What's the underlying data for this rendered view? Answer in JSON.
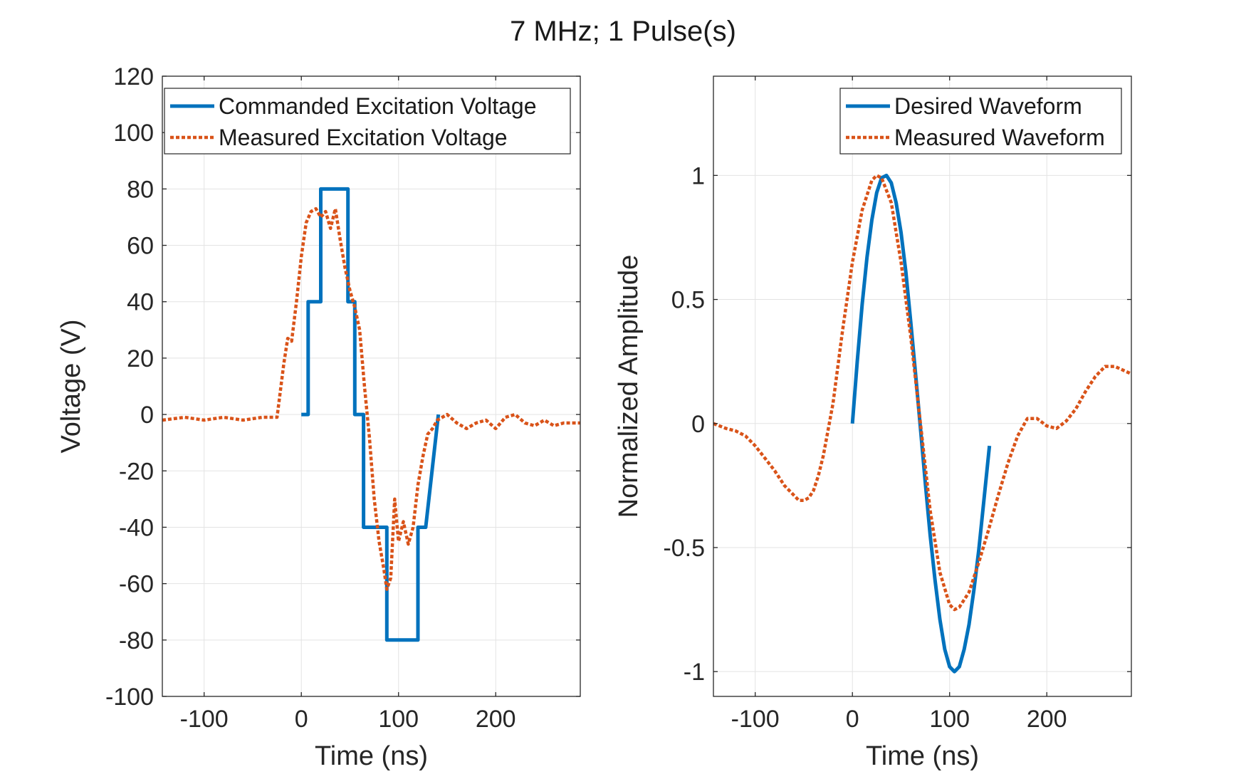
{
  "figure": {
    "title": "7 MHz; 1 Pulse(s)"
  },
  "colors": {
    "series1": "#0072BD",
    "series2": "#D95319",
    "grid": "#e3e3e3",
    "axis": "#262626"
  },
  "chart_data": [
    {
      "type": "line",
      "title": "",
      "xlabel": "Time (ns)",
      "ylabel": "Voltage (V)",
      "xlim": [
        -143,
        287
      ],
      "ylim": [
        -100,
        120
      ],
      "xticks": [
        -100,
        0,
        100,
        200
      ],
      "yticks": [
        -100,
        -80,
        -60,
        -40,
        -20,
        0,
        20,
        40,
        60,
        80,
        100,
        120
      ],
      "grid": true,
      "legend": "top-right",
      "series": [
        {
          "name": "Commanded Excitation Voltage",
          "style": "solid",
          "x": [
            0,
            7,
            7,
            20,
            20,
            48,
            48,
            55,
            55,
            64,
            64,
            78,
            78,
            88,
            88,
            120,
            120,
            128,
            128,
            141
          ],
          "y": [
            0,
            0,
            40,
            40,
            80,
            80,
            40,
            40,
            0,
            0,
            -40,
            -40,
            -40,
            -40,
            -80,
            -80,
            -40,
            -40,
            -40,
            0
          ]
        },
        {
          "name": "Measured Excitation Voltage",
          "style": "dotted",
          "x": [
            -143,
            -120,
            -100,
            -80,
            -60,
            -40,
            -25,
            -18,
            -14,
            -10,
            -5,
            0,
            5,
            10,
            15,
            20,
            25,
            30,
            35,
            40,
            45,
            50,
            55,
            60,
            65,
            70,
            75,
            80,
            85,
            88,
            92,
            96,
            100,
            105,
            110,
            115,
            120,
            125,
            130,
            135,
            140,
            150,
            160,
            170,
            180,
            190,
            200,
            210,
            220,
            230,
            240,
            250,
            260,
            270,
            287
          ],
          "y": [
            -2,
            -1,
            -2,
            -1,
            -2,
            -1,
            -1,
            18,
            27,
            26,
            40,
            56,
            68,
            72,
            73,
            70,
            72,
            66,
            73,
            62,
            52,
            44,
            38,
            30,
            10,
            -8,
            -30,
            -45,
            -55,
            -62,
            -58,
            -30,
            -45,
            -38,
            -46,
            -40,
            -25,
            -15,
            -7,
            -5,
            -2,
            0,
            -3,
            -5,
            -3,
            -2,
            -5,
            -1,
            0,
            -3,
            -4,
            -2,
            -4,
            -3,
            -3
          ]
        }
      ]
    },
    {
      "type": "line",
      "title": "",
      "xlabel": "Time (ns)",
      "ylabel": "Normalized Amplitude",
      "xlim": [
        -143,
        287
      ],
      "ylim": [
        -1.1,
        1.4
      ],
      "xticks": [
        -100,
        0,
        100,
        200
      ],
      "yticks": [
        -1,
        -0.5,
        0,
        0.5,
        1
      ],
      "grid": true,
      "legend": "top-right",
      "series": [
        {
          "name": "Desired Waveform",
          "style": "solid",
          "x": [
            0,
            5,
            10,
            15,
            20,
            25,
            30,
            35,
            40,
            45,
            50,
            55,
            60,
            65,
            70,
            75,
            80,
            85,
            90,
            95,
            100,
            105,
            110,
            115,
            120,
            125,
            130,
            135,
            141
          ],
          "y": [
            0,
            0.25,
            0.48,
            0.67,
            0.82,
            0.93,
            0.99,
            1.0,
            0.97,
            0.89,
            0.77,
            0.61,
            0.41,
            0.2,
            -0.02,
            -0.24,
            -0.45,
            -0.63,
            -0.79,
            -0.91,
            -0.98,
            -1.0,
            -0.98,
            -0.91,
            -0.81,
            -0.67,
            -0.51,
            -0.32,
            -0.09
          ]
        },
        {
          "name": "Measured Waveform",
          "style": "dotted",
          "x": [
            -143,
            -130,
            -120,
            -110,
            -100,
            -90,
            -80,
            -70,
            -60,
            -55,
            -50,
            -45,
            -40,
            -35,
            -30,
            -20,
            -10,
            0,
            10,
            20,
            25,
            30,
            40,
            50,
            60,
            70,
            80,
            90,
            100,
            105,
            110,
            120,
            130,
            140,
            150,
            160,
            170,
            180,
            190,
            200,
            210,
            220,
            230,
            240,
            250,
            260,
            270,
            287
          ],
          "y": [
            0.0,
            -0.02,
            -0.03,
            -0.05,
            -0.09,
            -0.14,
            -0.19,
            -0.25,
            -0.29,
            -0.31,
            -0.31,
            -0.3,
            -0.27,
            -0.21,
            -0.13,
            0.08,
            0.38,
            0.65,
            0.86,
            0.98,
            1.0,
            0.99,
            0.89,
            0.65,
            0.35,
            0.0,
            -0.35,
            -0.6,
            -0.73,
            -0.75,
            -0.74,
            -0.68,
            -0.56,
            -0.43,
            -0.29,
            -0.16,
            -0.05,
            0.02,
            0.02,
            -0.01,
            -0.02,
            0.01,
            0.06,
            0.13,
            0.19,
            0.23,
            0.23,
            0.2
          ]
        }
      ]
    }
  ]
}
